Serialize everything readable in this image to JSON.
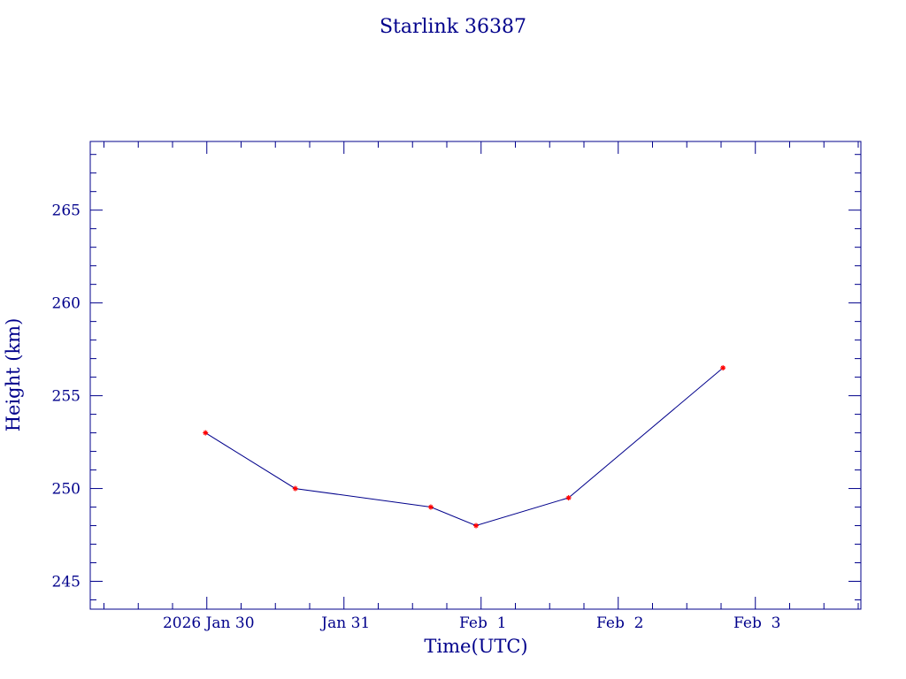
{
  "chart_data": {
    "type": "line",
    "title": "Starlink 36387",
    "xlabel": "Time(UTC)",
    "ylabel": "Height (km)",
    "x_tick_labels": [
      "2026 Jan 30",
      "Jan 31",
      "Feb  1",
      "Feb  2",
      "Feb  3"
    ],
    "x_ticks": [
      "2026-01-30",
      "2026-01-31",
      "2026-02-01",
      "2026-02-02",
      "2026-02-03"
    ],
    "xlim": [
      "2026-01-29T03:36",
      "2026-02-03T18:28"
    ],
    "yticks": [
      245,
      250,
      255,
      260,
      265
    ],
    "ylim": [
      243.5,
      268.7
    ],
    "grid": false,
    "colors": {
      "axes": "#00008B",
      "line": "#00008B",
      "marker": "#FF0000"
    },
    "series": [
      {
        "x": [
          "2026-01-29T23:46",
          "2026-01-30T15:29",
          "2026-01-31T15:12",
          "2026-01-31T23:07",
          "2026-02-01T15:19",
          "2026-02-02T18:20"
        ],
        "y": [
          253.0,
          250.0,
          249.0,
          248.0,
          249.5,
          256.5
        ]
      }
    ]
  }
}
